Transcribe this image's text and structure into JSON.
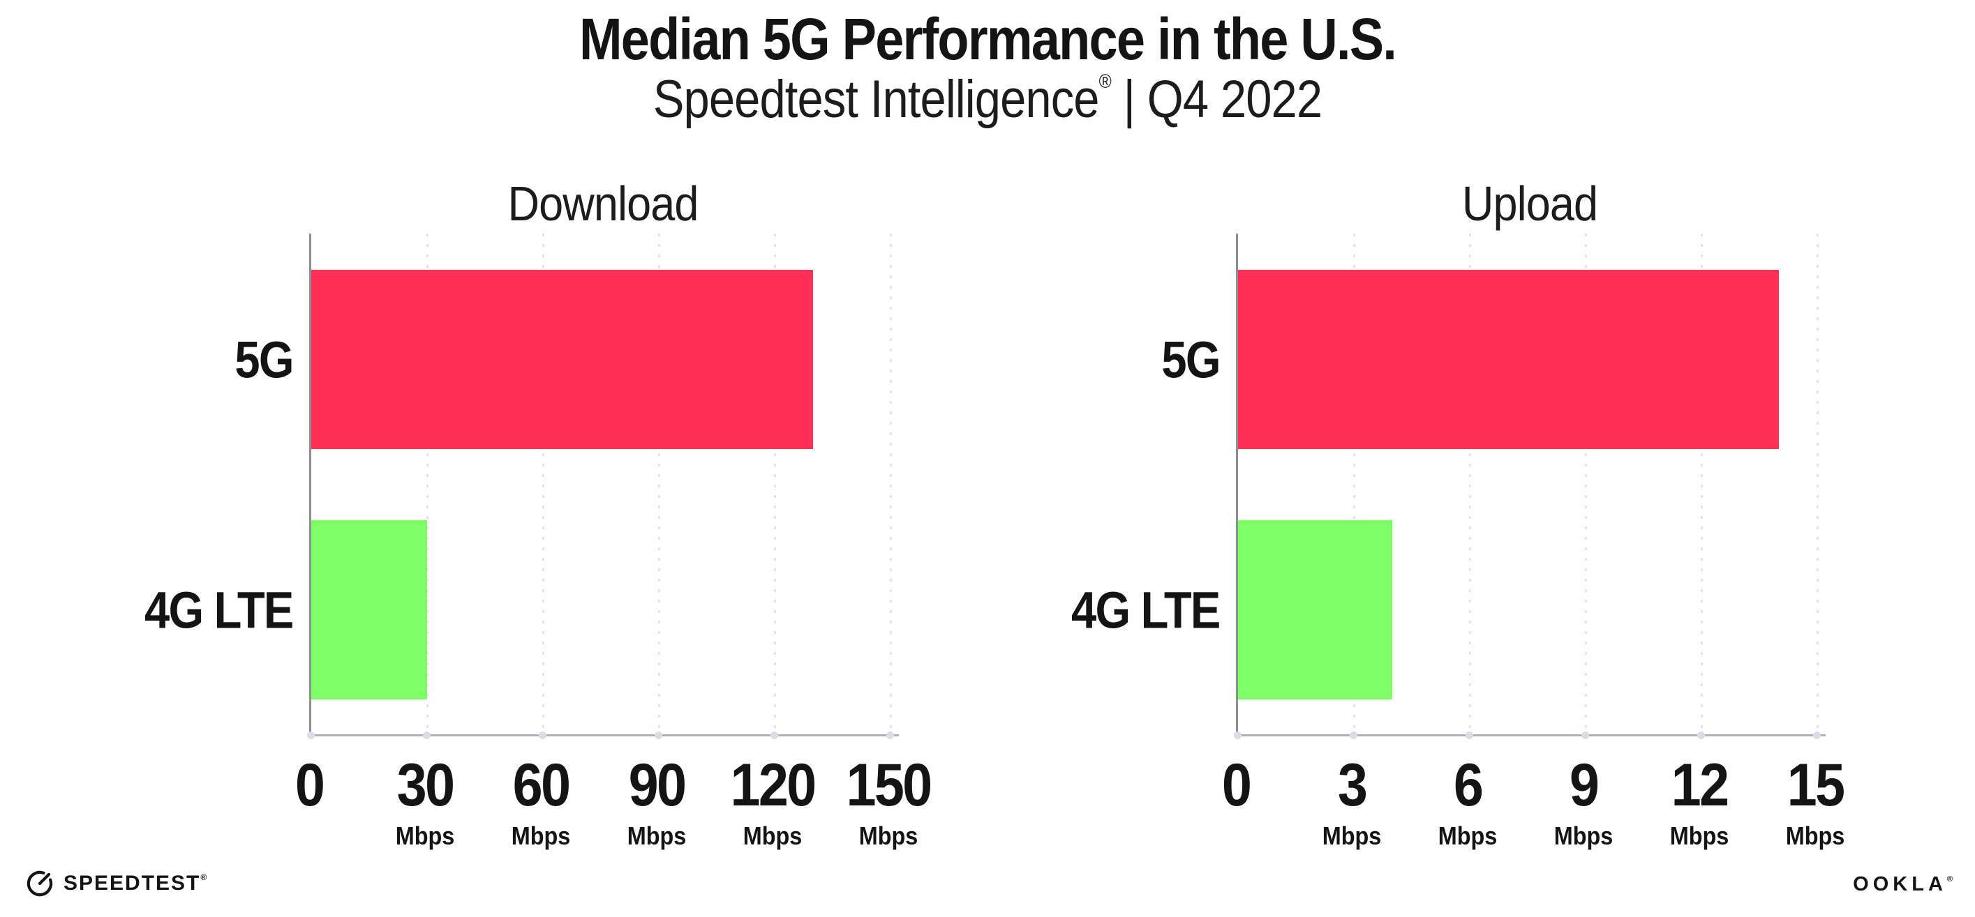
{
  "header": {
    "title": "Median 5G Performance in the U.S.",
    "subtitle_brand": "Speedtest Intelligence",
    "subtitle_reg": "®",
    "subtitle_rest": " | Q4 2022"
  },
  "chart_data": [
    {
      "id": "download",
      "type": "bar",
      "orientation": "horizontal",
      "title": "Download",
      "categories": [
        "5G",
        "4G LTE"
      ],
      "values": [
        130,
        30
      ],
      "values_unit": "Mbps",
      "xlim": [
        0,
        150
      ],
      "xticks": [
        0,
        30,
        60,
        90,
        120,
        150
      ],
      "xtick_unit": "Mbps",
      "bar_colors": [
        "#FF2F56",
        "#7DFF66"
      ],
      "grid": "vertical-dotted",
      "legend": "none"
    },
    {
      "id": "upload",
      "type": "bar",
      "orientation": "horizontal",
      "title": "Upload",
      "categories": [
        "5G",
        "4G LTE"
      ],
      "values": [
        14,
        4
      ],
      "values_unit": "Mbps",
      "xlim": [
        0,
        15
      ],
      "xticks": [
        0,
        3,
        6,
        9,
        12,
        15
      ],
      "xtick_unit": "Mbps",
      "bar_colors": [
        "#FF2F56",
        "#7DFF66"
      ],
      "grid": "vertical-dotted",
      "legend": "none"
    }
  ],
  "footer": {
    "speedtest_label": "SPEEDTEST",
    "speedtest_reg": "®",
    "ookla_label": "OOKLA",
    "ookla_reg": "®"
  },
  "colors": {
    "bar_5g": "#FF2F56",
    "bar_4g_lte": "#7DFF66",
    "gridline": "#E4E4EF",
    "axis": "#8F8F8F",
    "text": "#141414",
    "background": "#FFFFFF"
  }
}
